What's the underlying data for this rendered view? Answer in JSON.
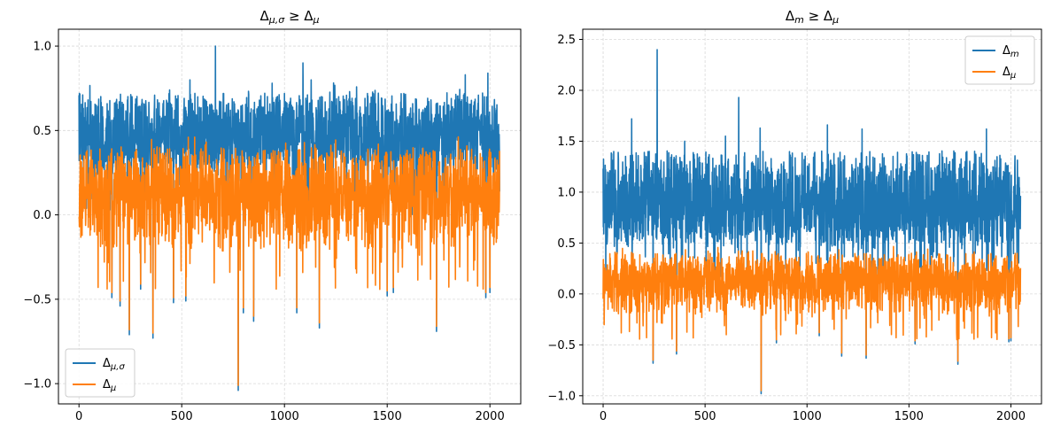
{
  "chart_data": [
    {
      "type": "line",
      "title": "Δμ,σ ≥ Δμ",
      "title_parts": {
        "lhs": "Δ",
        "lhs_sub": "μ,σ",
        "op": " ≥ ",
        "rhs": "Δ",
        "rhs_sub": "μ"
      },
      "xlim": [
        -100,
        2150
      ],
      "ylim": [
        -1.12,
        1.1
      ],
      "xticks": [
        0,
        500,
        1000,
        1500,
        2000
      ],
      "yticks": [
        -1.0,
        -0.5,
        0.0,
        0.5,
        1.0
      ],
      "xtick_labels": [
        "0",
        "500",
        "1000",
        "1500",
        "2000"
      ],
      "ytick_labels": [
        "−1.0",
        "−0.5",
        "0.0",
        "0.5",
        "1.0"
      ],
      "grid": true,
      "legend_location": "lower left",
      "n_points": 2048,
      "series": [
        {
          "name": "Δμ,σ",
          "legend_base": "Δ",
          "legend_sub": "μ,σ",
          "color": "#1f77b4",
          "baseline": 0.43,
          "spread": 0.13,
          "lo": 0.25,
          "hi": 0.75
        },
        {
          "name": "Δμ",
          "legend_base": "Δ",
          "legend_sub": "μ",
          "color": "#ff7f0e",
          "baseline": 0.15,
          "spread": 0.12,
          "lo": -0.2,
          "hi": 0.4
        }
      ],
      "spikes_up": [
        [
          664,
          1.0
        ],
        [
          1090,
          0.9
        ],
        [
          540,
          0.8
        ],
        [
          940,
          0.78
        ],
        [
          1130,
          0.8
        ],
        [
          1880,
          0.83
        ],
        [
          1990,
          0.84
        ]
      ],
      "spikes_down": [
        [
          775,
          -1.03
        ],
        [
          360,
          -0.72
        ],
        [
          245,
          -0.7
        ],
        [
          1740,
          -0.68
        ],
        [
          1170,
          -0.66
        ],
        [
          850,
          -0.62
        ],
        [
          800,
          -0.57
        ],
        [
          1060,
          -0.57
        ],
        [
          200,
          -0.53
        ],
        [
          460,
          -0.51
        ],
        [
          520,
          -0.5
        ],
        [
          1500,
          -0.47
        ],
        [
          1530,
          -0.45
        ],
        [
          1980,
          -0.48
        ],
        [
          2000,
          -0.45
        ],
        [
          160,
          -0.48
        ],
        [
          300,
          -0.43
        ]
      ]
    },
    {
      "type": "line",
      "title": "Δm ≥ Δμ",
      "title_parts": {
        "lhs": "Δ",
        "lhs_sub": "m",
        "op": " ≥ ",
        "rhs": "Δ",
        "rhs_sub": "μ"
      },
      "xlim": [
        -100,
        2150
      ],
      "ylim": [
        -1.08,
        2.6
      ],
      "xticks": [
        0,
        500,
        1000,
        1500,
        2000
      ],
      "yticks": [
        -1.0,
        -0.5,
        0.0,
        0.5,
        1.0,
        1.5,
        2.0,
        2.5
      ],
      "xtick_labels": [
        "0",
        "500",
        "1000",
        "1500",
        "2000"
      ],
      "ytick_labels": [
        "−1.0",
        "−0.5",
        "0.0",
        "0.5",
        "1.0",
        "1.5",
        "2.0",
        "2.5"
      ],
      "grid": true,
      "legend_location": "upper right",
      "n_points": 2048,
      "series": [
        {
          "name": "Δm",
          "legend_base": "Δ",
          "legend_sub": "m",
          "color": "#1f77b4",
          "baseline": 0.82,
          "spread": 0.22,
          "lo": 0.4,
          "hi": 1.4
        },
        {
          "name": "Δμ",
          "legend_base": "Δ",
          "legend_sub": "μ",
          "color": "#ff7f0e",
          "baseline": 0.15,
          "spread": 0.12,
          "lo": -0.2,
          "hi": 0.4
        }
      ],
      "spikes_up": [
        [
          265,
          2.4
        ],
        [
          665,
          1.93
        ],
        [
          140,
          1.72
        ],
        [
          770,
          1.63
        ],
        [
          1100,
          1.66
        ],
        [
          1270,
          1.62
        ],
        [
          1880,
          1.62
        ],
        [
          1990,
          1.58
        ],
        [
          600,
          1.55
        ],
        [
          400,
          1.5
        ]
      ],
      "spikes_down": [
        [
          775,
          -0.97
        ],
        [
          360,
          -0.58
        ],
        [
          245,
          -0.67
        ],
        [
          1740,
          -0.68
        ],
        [
          1170,
          -0.6
        ],
        [
          1290,
          -0.62
        ],
        [
          850,
          -0.47
        ],
        [
          1530,
          -0.48
        ],
        [
          1990,
          -0.46
        ],
        [
          2000,
          -0.45
        ],
        [
          1060,
          -0.4
        ]
      ]
    }
  ]
}
